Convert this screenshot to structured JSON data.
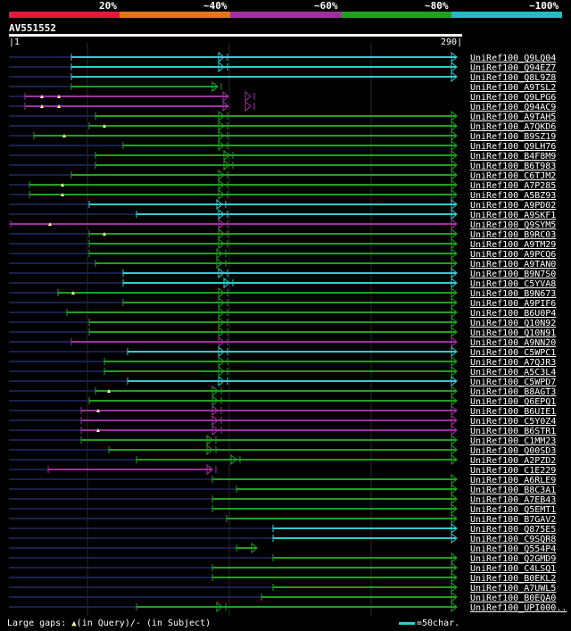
{
  "query": {
    "id": "AV551552",
    "start": "1",
    "end": "290",
    "length": 290
  },
  "identity_scale": {
    "labels": [
      "20%",
      "~40%",
      "~60%",
      "~80%",
      "~100%"
    ],
    "colors": [
      "#e8173a",
      "#e8741a",
      "#a030a0",
      "#20a020",
      "#22bcc4"
    ]
  },
  "colors": {
    "identity_80": "#20a020",
    "identity_60": "#a030a0",
    "identity_100": "#33cccc",
    "gap_line": "#1a1f4d",
    "grid": "#2a2a2a",
    "marker": "#ffff99"
  },
  "hits": [
    {
      "name": "UniRef100_Q9LQ04",
      "color": "cyan",
      "start": 80,
      "end": 290,
      "arrows": [
        251
      ]
    },
    {
      "name": "UniRef100_Q94EZ7",
      "color": "cyan",
      "start": 80,
      "end": 290,
      "arrows": [
        251
      ]
    },
    {
      "name": "UniRef100_Q8L9Z8",
      "color": "cyan",
      "start": 80,
      "end": 290,
      "arrows": []
    },
    {
      "name": "UniRef100_A9TSL2",
      "color": "green",
      "start": 80,
      "end": 244,
      "arrows": [
        244
      ]
    },
    {
      "name": "UniRef100_Q9LPG6",
      "color": "purple",
      "start": 28,
      "end": 256,
      "arrows": [
        281
      ],
      "markers": [
        47,
        66
      ]
    },
    {
      "name": "UniRef100_Q94AC9",
      "color": "purple",
      "start": 28,
      "end": 256,
      "arrows": [
        281
      ],
      "markers": [
        47,
        66
      ]
    },
    {
      "name": "UniRef100_A9TAH5",
      "color": "green",
      "start": 107,
      "end": 290,
      "arrows": [
        251
      ]
    },
    {
      "name": "UniRef100_A7QKD6",
      "color": "green",
      "start": 100,
      "end": 290,
      "arrows": [
        251
      ],
      "markers": [
        117
      ]
    },
    {
      "name": "UniRef100_B9SZ19",
      "color": "green",
      "start": 38,
      "end": 290,
      "arrows": [
        251
      ],
      "markers": [
        72
      ]
    },
    {
      "name": "UniRef100_Q9LH76",
      "color": "green",
      "start": 138,
      "end": 290,
      "arrows": [
        251
      ]
    },
    {
      "name": "UniRef100_B4F8M9",
      "color": "green",
      "start": 107,
      "end": 290,
      "arrows": [
        257
      ]
    },
    {
      "name": "UniRef100_B6T983",
      "color": "green",
      "start": 107,
      "end": 290,
      "arrows": [
        257
      ]
    },
    {
      "name": "UniRef100_C6TJM2",
      "color": "green",
      "start": 80,
      "end": 290,
      "arrows": [
        251
      ]
    },
    {
      "name": "UniRef100_A7P285",
      "color": "green",
      "start": 33,
      "end": 290,
      "arrows": [
        251
      ],
      "markers": [
        70
      ]
    },
    {
      "name": "UniRef100_A5BZ93",
      "color": "green",
      "start": 33,
      "end": 290,
      "arrows": [
        251
      ],
      "markers": [
        70
      ]
    },
    {
      "name": "UniRef100_A9PD02",
      "color": "cyan",
      "start": 100,
      "end": 290,
      "arrows": [
        249
      ]
    },
    {
      "name": "UniRef100_A9SKF1",
      "color": "cyan",
      "start": 153,
      "end": 290,
      "arrows": [
        251
      ]
    },
    {
      "name": "UniRef100_Q9SYM5",
      "color": "purple",
      "start": 12,
      "end": 290,
      "arrows": [
        251
      ],
      "markers": [
        56
      ]
    },
    {
      "name": "UniRef100_B9RC03",
      "color": "green",
      "start": 100,
      "end": 290,
      "arrows": [
        251
      ],
      "markers": [
        117
      ]
    },
    {
      "name": "UniRef100_A9TM29",
      "color": "green",
      "start": 100,
      "end": 290,
      "arrows": [
        251
      ]
    },
    {
      "name": "UniRef100_A9PCQ6",
      "color": "green",
      "start": 100,
      "end": 290,
      "arrows": [
        249
      ]
    },
    {
      "name": "UniRef100_A9TAN0",
      "color": "green",
      "start": 107,
      "end": 290,
      "arrows": [
        249
      ]
    },
    {
      "name": "UniRef100_B9N7S0",
      "color": "cyan",
      "start": 138,
      "end": 290,
      "arrows": [
        251
      ]
    },
    {
      "name": "UniRef100_C5YVA8",
      "color": "cyan",
      "start": 138,
      "end": 290,
      "arrows": [
        257
      ]
    },
    {
      "name": "UniRef100_B9N673",
      "color": "green",
      "start": 65,
      "end": 290,
      "arrows": [
        251
      ],
      "markers": [
        82
      ]
    },
    {
      "name": "UniRef100_A9PIF6",
      "color": "green",
      "start": 138,
      "end": 290,
      "arrows": [
        251
      ]
    },
    {
      "name": "UniRef100_B6U0P4",
      "color": "green",
      "start": 75,
      "end": 290,
      "arrows": [
        251
      ]
    },
    {
      "name": "UniRef100_Q10N92",
      "color": "green",
      "start": 100,
      "end": 290,
      "arrows": [
        251
      ]
    },
    {
      "name": "UniRef100_Q10N91",
      "color": "green",
      "start": 100,
      "end": 290,
      "arrows": [
        251
      ]
    },
    {
      "name": "UniRef100_A9NN20",
      "color": "purple",
      "start": 80,
      "end": 290,
      "arrows": [
        251
      ]
    },
    {
      "name": "UniRef100_C5WPC1",
      "color": "cyan",
      "start": 143,
      "end": 290,
      "arrows": [
        251
      ]
    },
    {
      "name": "UniRef100_A7QJR3",
      "color": "green",
      "start": 117,
      "end": 290,
      "arrows": [
        251
      ]
    },
    {
      "name": "UniRef100_A5C3L4",
      "color": "green",
      "start": 117,
      "end": 290,
      "arrows": [
        251
      ]
    },
    {
      "name": "UniRef100_C5WPD7",
      "color": "cyan",
      "start": 143,
      "end": 290,
      "arrows": [
        251
      ]
    },
    {
      "name": "UniRef100_B8AGT3",
      "color": "green",
      "start": 107,
      "end": 290,
      "arrows": [
        244
      ],
      "markers": [
        122
      ]
    },
    {
      "name": "UniRef100_Q6EPQ1",
      "color": "green",
      "start": 100,
      "end": 290,
      "arrows": [
        244
      ]
    },
    {
      "name": "UniRef100_B6UIE1",
      "color": "purple",
      "start": 91,
      "end": 290,
      "arrows": [
        244
      ],
      "markers": [
        110
      ]
    },
    {
      "name": "UniRef100_C5Y0Z4",
      "color": "purple",
      "start": 91,
      "end": 290,
      "arrows": [
        244
      ]
    },
    {
      "name": "UniRef100_B6STR1",
      "color": "purple",
      "start": 91,
      "end": 290,
      "arrows": [
        244
      ],
      "markers": [
        110
      ]
    },
    {
      "name": "UniRef100_C1MM23",
      "color": "green",
      "start": 91,
      "end": 290,
      "arrows": [
        238
      ]
    },
    {
      "name": "UniRef100_Q00SD3",
      "color": "green",
      "start": 122,
      "end": 290,
      "arrows": [
        238
      ]
    },
    {
      "name": "UniRef100_A2PZD2",
      "color": "green",
      "start": 153,
      "end": 290,
      "arrows": [
        265
      ]
    },
    {
      "name": "UniRef100_C1E229",
      "color": "purple",
      "start": 54,
      "end": 238,
      "arrows": [
        238
      ]
    },
    {
      "name": "UniRef100_A6RLE9",
      "color": "green",
      "start": 238,
      "end": 290,
      "arrows": []
    },
    {
      "name": "UniRef100_B8C3A1",
      "color": "green",
      "start": 265,
      "end": 290,
      "arrows": []
    },
    {
      "name": "UniRef100_A7EB43",
      "color": "green",
      "start": 238,
      "end": 290,
      "arrows": []
    },
    {
      "name": "UniRef100_Q5EMT1",
      "color": "green",
      "start": 238,
      "end": 290,
      "arrows": []
    },
    {
      "name": "UniRef100_B7GAV2",
      "color": "green",
      "start": 254,
      "end": 290,
      "arrows": []
    },
    {
      "name": "UniRef100_Q875E5",
      "color": "cyan",
      "start": 306,
      "end": 290,
      "arrows": []
    },
    {
      "name": "UniRef100_C9SQR8",
      "color": "cyan",
      "start": 306,
      "end": 290,
      "arrows": []
    },
    {
      "name": "UniRef100_Q554P4",
      "color": "green",
      "start": 265,
      "end": 288,
      "arrows": []
    },
    {
      "name": "UniRef100_Q2GMD9",
      "color": "green",
      "start": 306,
      "end": 290,
      "arrows": []
    },
    {
      "name": "UniRef100_C4LSQ1",
      "color": "green",
      "start": 238,
      "end": 290,
      "arrows": []
    },
    {
      "name": "UniRef100_B0EKL2",
      "color": "green",
      "start": 238,
      "end": 290,
      "arrows": []
    },
    {
      "name": "UniRef100_A7UWL5",
      "color": "green",
      "start": 306,
      "end": 290,
      "arrows": []
    },
    {
      "name": "UniRef100_B0EQA0",
      "color": "green",
      "start": 293,
      "end": 290,
      "arrows": []
    },
    {
      "name": "UniRef100_UPI000..",
      "color": "green",
      "start": 153,
      "end": 290,
      "arrows": [
        249
      ]
    }
  ],
  "footer": {
    "gap_prefix": "Large gaps: ",
    "gap_query": "(in Query)/",
    "gap_subject": "- (in Subject)",
    "scale_label": "=50char."
  }
}
